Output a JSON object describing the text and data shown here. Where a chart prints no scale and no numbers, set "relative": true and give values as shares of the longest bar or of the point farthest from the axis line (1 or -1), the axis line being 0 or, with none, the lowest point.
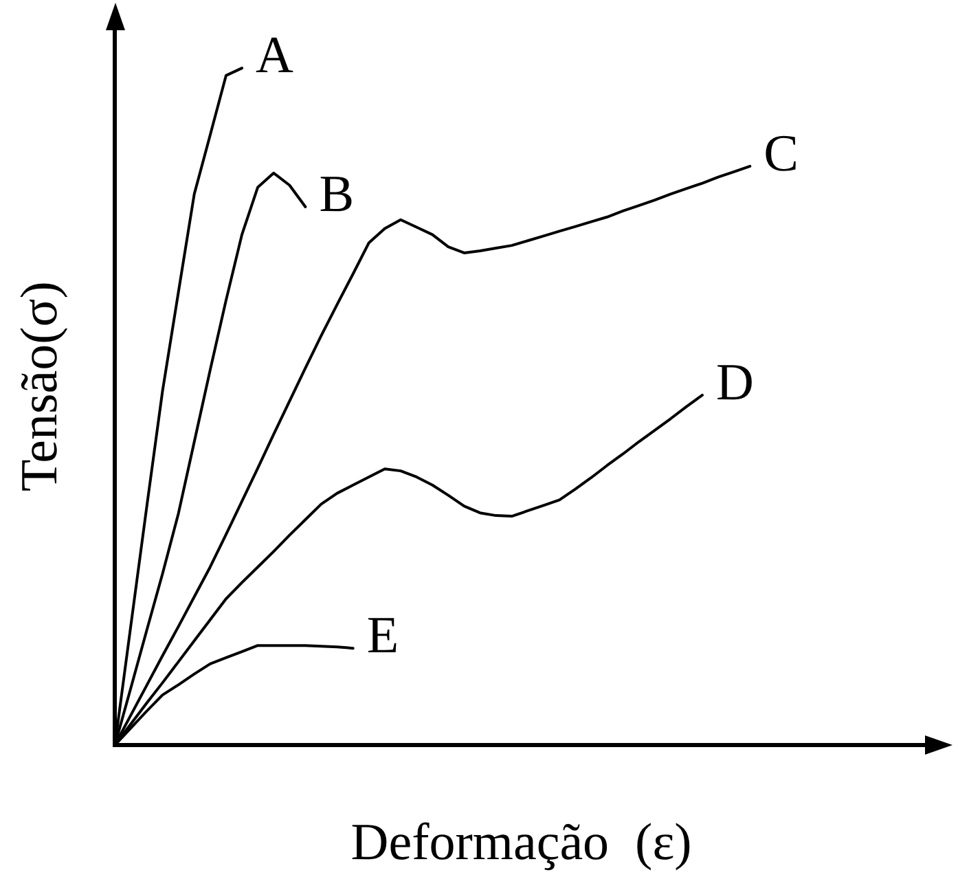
{
  "chart_data": {
    "type": "line",
    "relative": true,
    "xlabel": "Deformação  (ε)",
    "ylabel": "Tensão(σ)",
    "grid": false,
    "legend": false,
    "marker": "none",
    "line_style": "solid",
    "categories": [
      null,
      null,
      null,
      null,
      null,
      null,
      null,
      null,
      null,
      null,
      null,
      null,
      null,
      null,
      null,
      null,
      null,
      null,
      null,
      null,
      null,
      null,
      null,
      null,
      null,
      null,
      null,
      null,
      null,
      null,
      null,
      null,
      null,
      null,
      null,
      null,
      null,
      null,
      null,
      null,
      null
    ],
    "series": [
      {
        "name": "A",
        "color": "#000000",
        "values": [
          0,
          0.176,
          0.351,
          0.523,
          0.669,
          0.814,
          0.901,
          0.989,
          1,
          null,
          null,
          null,
          null,
          null,
          null,
          null,
          null,
          null,
          null,
          null,
          null,
          null,
          null,
          null,
          null,
          null,
          null,
          null,
          null,
          null,
          null,
          null,
          null,
          null,
          null,
          null,
          null,
          null,
          null,
          null,
          null
        ]
      },
      {
        "name": "B",
        "color": "#000000",
        "values": [
          0,
          0.084,
          0.169,
          0.253,
          0.342,
          0.448,
          0.554,
          0.657,
          0.754,
          0.824,
          0.845,
          0.827,
          0.795,
          null,
          null,
          null,
          null,
          null,
          null,
          null,
          null,
          null,
          null,
          null,
          null,
          null,
          null,
          null,
          null,
          null,
          null,
          null,
          null,
          null,
          null,
          null,
          null,
          null,
          null,
          null,
          null
        ]
      },
      {
        "name": "C",
        "color": "#000000",
        "values": [
          0,
          0.044,
          0.088,
          0.132,
          0.175,
          0.219,
          0.263,
          0.311,
          0.36,
          0.409,
          0.459,
          0.508,
          0.557,
          0.605,
          0.651,
          0.696,
          0.742,
          0.763,
          0.776,
          0.765,
          0.754,
          0.736,
          0.727,
          0.73,
          0.734,
          0.738,
          0.745,
          0.752,
          0.759,
          0.766,
          0.773,
          0.78,
          0.789,
          0.797,
          0.805,
          0.814,
          0.822,
          0.83,
          0.839,
          0.847,
          0.855
        ]
      },
      {
        "name": "D",
        "color": "#000000",
        "values": [
          0,
          0.031,
          0.062,
          0.092,
          0.123,
          0.154,
          0.185,
          0.216,
          0.24,
          0.263,
          0.286,
          0.31,
          0.333,
          0.356,
          0.372,
          0.384,
          0.396,
          0.408,
          0.405,
          0.396,
          0.384,
          0.369,
          0.353,
          0.343,
          0.339,
          0.338,
          0.346,
          0.354,
          0.362,
          0.378,
          0.395,
          0.413,
          0.43,
          0.448,
          0.465,
          0.482,
          0.5,
          0.517,
          null,
          null,
          null
        ]
      },
      {
        "name": "E",
        "color": "#000000",
        "values": [
          0,
          0.025,
          0.05,
          0.074,
          0.089,
          0.105,
          0.12,
          0.129,
          0.138,
          0.147,
          0.147,
          0.147,
          0.147,
          0.146,
          0.145,
          0.143,
          null,
          null,
          null,
          null,
          null,
          null,
          null,
          null,
          null,
          null,
          null,
          null,
          null,
          null,
          null,
          null,
          null,
          null,
          null,
          null,
          null,
          null,
          null,
          null,
          null
        ]
      }
    ]
  }
}
